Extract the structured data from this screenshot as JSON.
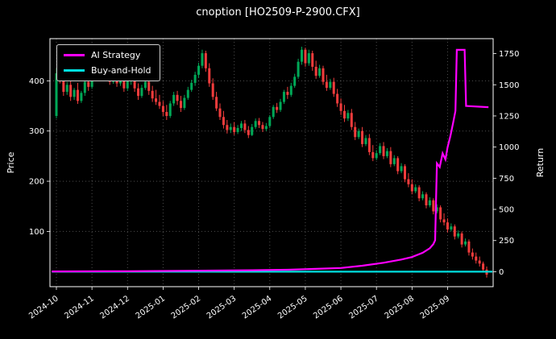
{
  "window": {
    "background": "#000000",
    "text_color": "#ffffff"
  },
  "chart_data": {
    "type": "candlestick_with_lines",
    "title": "cnoption [HO2509-P-2900.CFX]",
    "grid": true,
    "grid_color": "rgba(255,255,255,0.30)",
    "legend_position": "top-left",
    "up_color": "#00a857",
    "down_color": "#f23c3c",
    "price_axis": {
      "label": "Price",
      "ticks": [
        100,
        200,
        300,
        400
      ],
      "range": [
        -10,
        484
      ]
    },
    "return_axis": {
      "label": "Return",
      "ticks": [
        0,
        250,
        500,
        750,
        1000,
        1250,
        1500,
        1750
      ],
      "range": [
        -120,
        1870
      ]
    },
    "x_axis": {
      "tick_labels": [
        "2024-10",
        "2024-11",
        "2024-12",
        "2025-01",
        "2025-02",
        "2025-03",
        "2025-04",
        "2025-05",
        "2025-06",
        "2025-07",
        "2025-08",
        "2025-09"
      ],
      "tick_indices": [
        0,
        10,
        20,
        30,
        40,
        50,
        60,
        70,
        80,
        90,
        100,
        110
      ]
    },
    "candles_ohlc": [
      [
        330,
        425,
        325,
        415
      ],
      [
        415,
        430,
        395,
        400
      ],
      [
        400,
        412,
        370,
        378
      ],
      [
        378,
        398,
        372,
        392
      ],
      [
        392,
        400,
        360,
        368
      ],
      [
        368,
        386,
        362,
        382
      ],
      [
        382,
        396,
        354,
        360
      ],
      [
        360,
        380,
        356,
        376
      ],
      [
        376,
        402,
        370,
        398
      ],
      [
        398,
        410,
        380,
        388
      ],
      [
        388,
        420,
        384,
        415
      ],
      [
        415,
        455,
        408,
        445
      ],
      [
        445,
        450,
        425,
        432
      ],
      [
        432,
        440,
        402,
        408
      ],
      [
        408,
        425,
        400,
        420
      ],
      [
        420,
        430,
        392,
        398
      ],
      [
        398,
        418,
        394,
        412
      ],
      [
        412,
        420,
        388,
        395
      ],
      [
        395,
        412,
        390,
        405
      ],
      [
        405,
        415,
        378,
        385
      ],
      [
        385,
        408,
        380,
        402
      ],
      [
        402,
        414,
        392,
        408
      ],
      [
        408,
        412,
        378,
        385
      ],
      [
        385,
        395,
        362,
        370
      ],
      [
        370,
        392,
        366,
        386
      ],
      [
        386,
        404,
        382,
        398
      ],
      [
        398,
        406,
        372,
        380
      ],
      [
        380,
        390,
        358,
        365
      ],
      [
        365,
        382,
        352,
        358
      ],
      [
        358,
        372,
        344,
        350
      ],
      [
        350,
        360,
        330,
        338
      ],
      [
        338,
        352,
        322,
        330
      ],
      [
        330,
        360,
        326,
        355
      ],
      [
        355,
        378,
        350,
        372
      ],
      [
        372,
        380,
        352,
        360
      ],
      [
        360,
        370,
        338,
        346
      ],
      [
        346,
        372,
        342,
        366
      ],
      [
        366,
        388,
        362,
        382
      ],
      [
        382,
        402,
        378,
        396
      ],
      [
        396,
        418,
        390,
        412
      ],
      [
        412,
        436,
        406,
        430
      ],
      [
        430,
        462,
        425,
        455
      ],
      [
        455,
        460,
        418,
        425
      ],
      [
        425,
        435,
        388,
        395
      ],
      [
        395,
        405,
        362,
        368
      ],
      [
        368,
        378,
        340,
        345
      ],
      [
        345,
        355,
        322,
        328
      ],
      [
        328,
        340,
        305,
        312
      ],
      [
        312,
        322,
        295,
        302
      ],
      [
        302,
        315,
        296,
        308
      ],
      [
        308,
        318,
        292,
        298
      ],
      [
        298,
        312,
        294,
        306
      ],
      [
        306,
        320,
        300,
        315
      ],
      [
        315,
        322,
        296,
        302
      ],
      [
        302,
        310,
        286,
        292
      ],
      [
        292,
        314,
        290,
        308
      ],
      [
        308,
        325,
        304,
        320
      ],
      [
        320,
        326,
        306,
        312
      ],
      [
        312,
        318,
        298,
        304
      ],
      [
        304,
        316,
        300,
        310
      ],
      [
        310,
        332,
        306,
        328
      ],
      [
        328,
        352,
        324,
        348
      ],
      [
        348,
        356,
        336,
        342
      ],
      [
        342,
        364,
        338,
        358
      ],
      [
        358,
        382,
        354,
        378
      ],
      [
        378,
        388,
        364,
        372
      ],
      [
        372,
        396,
        368,
        390
      ],
      [
        390,
        414,
        386,
        408
      ],
      [
        408,
        444,
        404,
        438
      ],
      [
        438,
        468,
        432,
        462
      ],
      [
        462,
        466,
        428,
        435
      ],
      [
        435,
        462,
        430,
        455
      ],
      [
        455,
        460,
        420,
        428
      ],
      [
        428,
        440,
        404,
        410
      ],
      [
        410,
        432,
        406,
        425
      ],
      [
        425,
        430,
        392,
        398
      ],
      [
        398,
        412,
        380,
        386
      ],
      [
        386,
        404,
        382,
        398
      ],
      [
        398,
        406,
        368,
        374
      ],
      [
        374,
        384,
        348,
        355
      ],
      [
        355,
        365,
        332,
        340
      ],
      [
        340,
        352,
        318,
        325
      ],
      [
        325,
        342,
        320,
        336
      ],
      [
        336,
        344,
        302,
        308
      ],
      [
        308,
        318,
        282,
        288
      ],
      [
        288,
        305,
        284,
        300
      ],
      [
        300,
        308,
        268,
        274
      ],
      [
        274,
        292,
        270,
        286
      ],
      [
        286,
        294,
        252,
        258
      ],
      [
        258,
        272,
        240,
        246
      ],
      [
        246,
        262,
        242,
        256
      ],
      [
        256,
        276,
        252,
        270
      ],
      [
        270,
        278,
        244,
        250
      ],
      [
        250,
        266,
        246,
        260
      ],
      [
        260,
        268,
        228,
        234
      ],
      [
        234,
        252,
        230,
        246
      ],
      [
        246,
        250,
        214,
        220
      ],
      [
        220,
        236,
        216,
        230
      ],
      [
        230,
        234,
        198,
        204
      ],
      [
        204,
        216,
        188,
        194
      ],
      [
        194,
        204,
        174,
        180
      ],
      [
        180,
        194,
        176,
        188
      ],
      [
        188,
        192,
        160,
        166
      ],
      [
        166,
        180,
        162,
        174
      ],
      [
        174,
        178,
        146,
        152
      ],
      [
        152,
        168,
        148,
        162
      ],
      [
        162,
        166,
        134,
        140
      ],
      [
        140,
        154,
        136,
        148
      ],
      [
        148,
        152,
        118,
        124
      ],
      [
        124,
        136,
        112,
        118
      ],
      [
        118,
        126,
        98,
        104
      ],
      [
        104,
        116,
        100,
        110
      ],
      [
        110,
        114,
        84,
        90
      ],
      [
        90,
        102,
        86,
        96
      ],
      [
        96,
        100,
        68,
        74
      ],
      [
        74,
        86,
        70,
        80
      ],
      [
        80,
        84,
        52,
        58
      ],
      [
        58,
        66,
        44,
        50
      ],
      [
        50,
        58,
        36,
        42
      ],
      [
        42,
        50,
        30,
        36
      ],
      [
        36,
        40,
        18,
        24
      ],
      [
        24,
        30,
        8,
        14
      ]
    ],
    "series": [
      {
        "name": "AI Strategy",
        "axis": "return",
        "color": "#ff00ff",
        "points": [
          [
            -1.3,
            2
          ],
          [
            20,
            4
          ],
          [
            40,
            8
          ],
          [
            55,
            12
          ],
          [
            65,
            16
          ],
          [
            72,
            22
          ],
          [
            80,
            30
          ],
          [
            86,
            48
          ],
          [
            92,
            72
          ],
          [
            97,
            98
          ],
          [
            100,
            118
          ],
          [
            103,
            152
          ],
          [
            105,
            188
          ],
          [
            106,
            222
          ],
          [
            106.5,
            252
          ],
          [
            107,
            870
          ],
          [
            107.8,
            840
          ],
          [
            108.6,
            950
          ],
          [
            109.4,
            900
          ],
          [
            110,
            1000
          ],
          [
            110.8,
            1090
          ],
          [
            111.6,
            1200
          ],
          [
            112.2,
            1290
          ],
          [
            112.6,
            1780
          ],
          [
            114.8,
            1780
          ],
          [
            115.2,
            1330
          ],
          [
            121.5,
            1320
          ]
        ]
      },
      {
        "name": "Buy-and-Hold",
        "axis": "return",
        "color": "#00e0e0",
        "points": [
          [
            -1.3,
            0
          ],
          [
            122.6,
            0
          ]
        ]
      }
    ]
  }
}
